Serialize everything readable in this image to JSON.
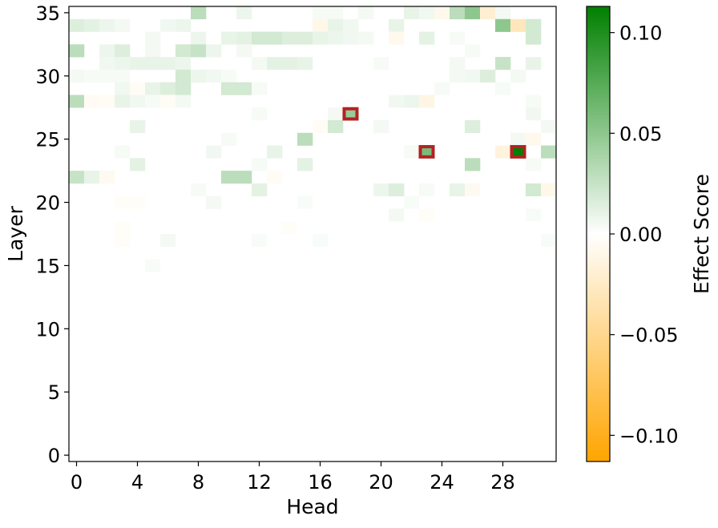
{
  "chart_data": {
    "type": "heatmap",
    "xlabel": "Head",
    "ylabel": "Layer",
    "colorbar_label": "Effect Score",
    "x_range": [
      0,
      31
    ],
    "y_range": [
      0,
      35
    ],
    "x_ticks": [
      "0",
      "4",
      "8",
      "12",
      "16",
      "20",
      "24",
      "28"
    ],
    "y_ticks": [
      "0",
      "5",
      "10",
      "15",
      "20",
      "25",
      "30",
      "35"
    ],
    "colorbar_ticks": [
      "0.10",
      "0.05",
      "0.00",
      "−0.05",
      "−0.10"
    ],
    "colorbar_tick_values": [
      0.1,
      0.05,
      0.0,
      -0.05,
      -0.1
    ],
    "color_range": [
      -0.113,
      0.113
    ],
    "colormap": {
      "negative": "#ffa500",
      "zero": "#ffffff",
      "positive": "#008000"
    },
    "highlight_color": "#b22222",
    "cells": [
      [
        35,
        8,
        0.03
      ],
      [
        35,
        11,
        0.008
      ],
      [
        35,
        16,
        0.004
      ],
      [
        35,
        17,
        0.004
      ],
      [
        35,
        19,
        0.005
      ],
      [
        35,
        22,
        0.01
      ],
      [
        35,
        23,
        0.006
      ],
      [
        35,
        24,
        -0.008
      ],
      [
        35,
        25,
        0.03
      ],
      [
        35,
        26,
        0.05
      ],
      [
        35,
        27,
        -0.02
      ],
      [
        35,
        28,
        0.005
      ],
      [
        34,
        0,
        0.015
      ],
      [
        34,
        1,
        0.012
      ],
      [
        34,
        2,
        0.008
      ],
      [
        34,
        3,
        0.005
      ],
      [
        34,
        6,
        0.006
      ],
      [
        34,
        7,
        0.008
      ],
      [
        34,
        16,
        -0.01
      ],
      [
        34,
        17,
        0.01
      ],
      [
        34,
        18,
        0.006
      ],
      [
        34,
        21,
        0.01
      ],
      [
        34,
        28,
        0.05
      ],
      [
        34,
        29,
        -0.03
      ],
      [
        34,
        30,
        0.02
      ],
      [
        33,
        5,
        0.005
      ],
      [
        33,
        8,
        0.008
      ],
      [
        33,
        10,
        0.01
      ],
      [
        33,
        11,
        0.012
      ],
      [
        33,
        12,
        0.02
      ],
      [
        33,
        13,
        0.02
      ],
      [
        33,
        14,
        0.015
      ],
      [
        33,
        15,
        0.015
      ],
      [
        33,
        16,
        0.01
      ],
      [
        33,
        17,
        0.008
      ],
      [
        33,
        18,
        0.006
      ],
      [
        33,
        19,
        0.005
      ],
      [
        33,
        21,
        -0.008
      ],
      [
        33,
        23,
        0.012
      ],
      [
        33,
        25,
        0.004
      ],
      [
        33,
        30,
        0.02
      ],
      [
        32,
        0,
        0.03
      ],
      [
        32,
        2,
        0.008
      ],
      [
        32,
        3,
        0.015
      ],
      [
        32,
        5,
        0.005
      ],
      [
        32,
        7,
        0.02
      ],
      [
        32,
        8,
        0.025
      ],
      [
        32,
        9,
        0.008
      ],
      [
        32,
        11,
        0.005
      ],
      [
        32,
        26,
        0.004
      ],
      [
        31,
        2,
        0.006
      ],
      [
        31,
        3,
        0.008
      ],
      [
        31,
        4,
        0.01
      ],
      [
        31,
        5,
        0.01
      ],
      [
        31,
        6,
        0.01
      ],
      [
        31,
        7,
        0.008
      ],
      [
        31,
        12,
        0.005
      ],
      [
        31,
        13,
        0.012
      ],
      [
        31,
        14,
        0.012
      ],
      [
        31,
        15,
        0.01
      ],
      [
        31,
        20,
        0.004
      ],
      [
        31,
        25,
        0.005
      ],
      [
        31,
        28,
        0.025
      ],
      [
        31,
        30,
        0.01
      ],
      [
        30,
        0,
        0.005
      ],
      [
        30,
        1,
        0.004
      ],
      [
        30,
        2,
        0.004
      ],
      [
        30,
        3,
        0.004
      ],
      [
        30,
        7,
        0.02
      ],
      [
        30,
        8,
        0.008
      ],
      [
        30,
        9,
        0.006
      ],
      [
        30,
        10,
        0.004
      ],
      [
        30,
        25,
        0.005
      ],
      [
        30,
        26,
        0.006
      ],
      [
        30,
        27,
        0.015
      ],
      [
        30,
        29,
        0.005
      ],
      [
        29,
        3,
        0.006
      ],
      [
        29,
        4,
        -0.004
      ],
      [
        29,
        5,
        0.01
      ],
      [
        29,
        6,
        0.015
      ],
      [
        29,
        7,
        0.02
      ],
      [
        29,
        10,
        0.02
      ],
      [
        29,
        11,
        0.02
      ],
      [
        29,
        12,
        0.004
      ],
      [
        29,
        24,
        0.004
      ],
      [
        29,
        28,
        0.004
      ],
      [
        28,
        0,
        0.03
      ],
      [
        28,
        1,
        -0.005
      ],
      [
        28,
        2,
        -0.004
      ],
      [
        28,
        3,
        0.01
      ],
      [
        28,
        4,
        0.006
      ],
      [
        28,
        5,
        0.004
      ],
      [
        28,
        6,
        -0.004
      ],
      [
        28,
        7,
        0.005
      ],
      [
        28,
        21,
        0.006
      ],
      [
        28,
        22,
        0.008
      ],
      [
        28,
        23,
        -0.012
      ],
      [
        28,
        30,
        0.004
      ],
      [
        27,
        18,
        0.045
      ],
      [
        27,
        17,
        0.005
      ],
      [
        27,
        12,
        0.004
      ],
      [
        27,
        30,
        0.006
      ],
      [
        26,
        4,
        0.01
      ],
      [
        26,
        16,
        -0.004
      ],
      [
        26,
        17,
        0.02
      ],
      [
        26,
        20,
        0.005
      ],
      [
        26,
        26,
        0.015
      ],
      [
        26,
        31,
        0.005
      ],
      [
        25,
        10,
        0.004
      ],
      [
        25,
        15,
        0.03
      ],
      [
        25,
        29,
        0.005
      ],
      [
        25,
        30,
        -0.008
      ],
      [
        24,
        3,
        0.004
      ],
      [
        24,
        9,
        0.006
      ],
      [
        24,
        13,
        0.01
      ],
      [
        24,
        23,
        0.06
      ],
      [
        24,
        28,
        -0.015
      ],
      [
        24,
        29,
        0.113
      ],
      [
        24,
        31,
        0.03
      ],
      [
        24,
        22,
        0.004
      ],
      [
        23,
        4,
        0.012
      ],
      [
        23,
        12,
        0.004
      ],
      [
        23,
        15,
        0.012
      ],
      [
        23,
        26,
        0.03
      ],
      [
        23,
        30,
        0.004
      ],
      [
        22,
        0,
        0.025
      ],
      [
        22,
        1,
        0.01
      ],
      [
        22,
        2,
        -0.006
      ],
      [
        22,
        10,
        0.03
      ],
      [
        22,
        11,
        0.03
      ],
      [
        22,
        13,
        -0.004
      ],
      [
        21,
        8,
        0.004
      ],
      [
        21,
        12,
        0.012
      ],
      [
        21,
        20,
        0.008
      ],
      [
        21,
        21,
        0.015
      ],
      [
        21,
        23,
        0.004
      ],
      [
        21,
        25,
        0.01
      ],
      [
        21,
        26,
        -0.006
      ],
      [
        21,
        30,
        0.02
      ],
      [
        21,
        31,
        -0.01
      ],
      [
        20,
        3,
        -0.003
      ],
      [
        20,
        4,
        -0.003
      ],
      [
        20,
        9,
        0.005
      ],
      [
        20,
        15,
        0.003
      ],
      [
        20,
        22,
        0.003
      ],
      [
        19,
        21,
        0.005
      ],
      [
        19,
        23,
        -0.003
      ],
      [
        19,
        30,
        0.003
      ],
      [
        18,
        3,
        -0.003
      ],
      [
        18,
        14,
        -0.003
      ],
      [
        17,
        3,
        -0.003
      ],
      [
        17,
        6,
        0.005
      ],
      [
        17,
        12,
        0.003
      ],
      [
        17,
        16,
        0.003
      ],
      [
        17,
        31,
        0.003
      ],
      [
        15,
        5,
        0.003
      ]
    ],
    "highlights": [
      [
        27,
        18
      ],
      [
        24,
        23
      ],
      [
        24,
        29
      ]
    ]
  }
}
